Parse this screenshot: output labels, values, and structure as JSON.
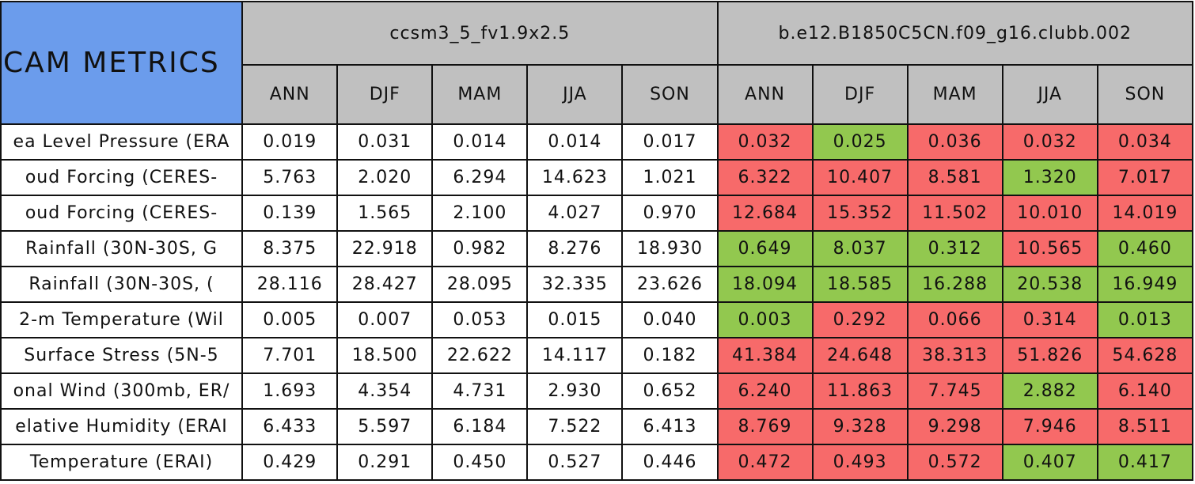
{
  "header": {
    "title": "CAM METRICS"
  },
  "groups": [
    {
      "name": "ccsm3_5_fv1.9x2.5",
      "seasons": [
        "ANN",
        "DJF",
        "MAM",
        "JJA",
        "SON"
      ]
    },
    {
      "name": "b.e12.B1850C5CN.f09_g16.clubb.002",
      "seasons": [
        "ANN",
        "DJF",
        "MAM",
        "JJA",
        "SON"
      ]
    }
  ],
  "rows": [
    {
      "label": "ea Level Pressure (ERA",
      "values": [
        "0.019",
        "0.031",
        "0.014",
        "0.014",
        "0.017",
        "0.032",
        "0.025",
        "0.036",
        "0.032",
        "0.034"
      ],
      "fills": [
        "#f76a6a",
        "#92c84f",
        "#f76a6a",
        "#f76a6a",
        "#f76a6a"
      ]
    },
    {
      "label": "oud Forcing (CERES-",
      "values": [
        "5.763",
        "2.020",
        "6.294",
        "14.623",
        "1.021",
        "6.322",
        "10.407",
        "8.581",
        "1.320",
        "7.017"
      ],
      "fills": [
        "#f76a6a",
        "#f76a6a",
        "#f76a6a",
        "#92c84f",
        "#f76a6a"
      ]
    },
    {
      "label": "oud Forcing (CERES-",
      "values": [
        "0.139",
        "1.565",
        "2.100",
        "4.027",
        "0.970",
        "12.684",
        "15.352",
        "11.502",
        "10.010",
        "14.019"
      ],
      "fills": [
        "#f76a6a",
        "#f76a6a",
        "#f76a6a",
        "#f76a6a",
        "#f76a6a"
      ]
    },
    {
      "label": "Rainfall (30N-30S, G",
      "values": [
        "8.375",
        "22.918",
        "0.982",
        "8.276",
        "18.930",
        "0.649",
        "8.037",
        "0.312",
        "10.565",
        "0.460"
      ],
      "fills": [
        "#92c84f",
        "#92c84f",
        "#92c84f",
        "#f76a6a",
        "#92c84f"
      ]
    },
    {
      "label": "Rainfall (30N-30S, (",
      "values": [
        "28.116",
        "28.427",
        "28.095",
        "32.335",
        "23.626",
        "18.094",
        "18.585",
        "16.288",
        "20.538",
        "16.949"
      ],
      "fills": [
        "#92c84f",
        "#92c84f",
        "#92c84f",
        "#92c84f",
        "#92c84f"
      ]
    },
    {
      "label": "2-m Temperature (Wil",
      "values": [
        "0.005",
        "0.007",
        "0.053",
        "0.015",
        "0.040",
        "0.003",
        "0.292",
        "0.066",
        "0.314",
        "0.013"
      ],
      "fills": [
        "#92c84f",
        "#f76a6a",
        "#f76a6a",
        "#f76a6a",
        "#92c84f"
      ]
    },
    {
      "label": "Surface Stress (5N-5",
      "values": [
        "7.701",
        "18.500",
        "22.622",
        "14.117",
        "0.182",
        "41.384",
        "24.648",
        "38.313",
        "51.826",
        "54.628"
      ],
      "fills": [
        "#f76a6a",
        "#f76a6a",
        "#f76a6a",
        "#f76a6a",
        "#f76a6a"
      ]
    },
    {
      "label": "onal Wind (300mb, ER/",
      "values": [
        "1.693",
        "4.354",
        "4.731",
        "2.930",
        "0.652",
        "6.240",
        "11.863",
        "7.745",
        "2.882",
        "6.140"
      ],
      "fills": [
        "#f76a6a",
        "#f76a6a",
        "#f76a6a",
        "#92c84f",
        "#f76a6a"
      ]
    },
    {
      "label": "elative Humidity (ERAI",
      "values": [
        "6.433",
        "5.597",
        "6.184",
        "7.522",
        "6.413",
        "8.769",
        "9.328",
        "9.298",
        "7.946",
        "8.511"
      ],
      "fills": [
        "#f76a6a",
        "#f76a6a",
        "#f76a6a",
        "#f76a6a",
        "#f76a6a"
      ]
    },
    {
      "label": "Temperature (ERAI)",
      "values": [
        "0.429",
        "0.291",
        "0.450",
        "0.527",
        "0.446",
        "0.472",
        "0.493",
        "0.572",
        "0.407",
        "0.417"
      ],
      "fills": [
        "#f76a6a",
        "#f76a6a",
        "#f76a6a",
        "#92c84f",
        "#92c84f"
      ]
    }
  ]
}
